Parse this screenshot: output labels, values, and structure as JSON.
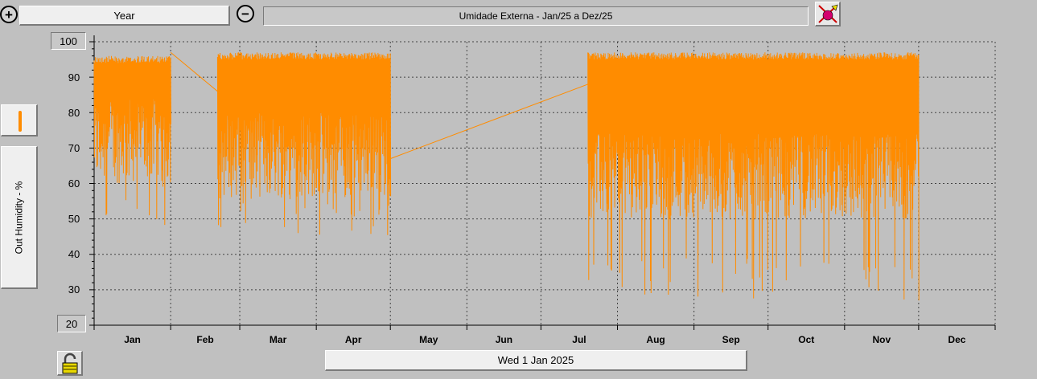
{
  "toolbar": {
    "zoom_in_icon": "zoom-in-icon",
    "zoom_out_icon": "zoom-out-icon",
    "period_label": "Year",
    "chart_title": "Umidade Externa - Jan/25 a Dez/25",
    "settings_icon": "paint-brush-icon"
  },
  "sidebar": {
    "series_label": "Out Humidity - %",
    "series_swatch_color": "#ff8c00"
  },
  "footer": {
    "lock_icon": "padlock-icon",
    "date_label": "Wed 1 Jan 2025"
  },
  "colors": {
    "background": "#c0c0c0",
    "series": "#ff8c00",
    "grid": "#444444"
  },
  "chart_data": {
    "type": "line",
    "ylim": [
      20,
      100
    ],
    "yticks": [
      20,
      30,
      40,
      50,
      60,
      70,
      80,
      90,
      100
    ],
    "xlim_days": [
      0,
      365
    ],
    "months": [
      "Jan",
      "Feb",
      "Mar",
      "Apr",
      "May",
      "Jun",
      "Jul",
      "Aug",
      "Sep",
      "Oct",
      "Nov",
      "Dec"
    ],
    "grid": true,
    "series": [
      {
        "color": "#ff8c00",
        "segments": [
          {
            "start_day": 0,
            "end_day": 31,
            "high": 96,
            "typical_low": 72,
            "min": 48
          },
          {
            "start_day": 50,
            "end_day": 120,
            "high": 97,
            "typical_low": 68,
            "min": 45
          },
          {
            "start_day": 200,
            "end_day": 334,
            "high": 97,
            "typical_low": 62,
            "min": 27
          }
        ],
        "connectors": [
          {
            "from_day": 31,
            "from_value": 97,
            "to_day": 50,
            "to_value": 86
          },
          {
            "from_day": 120,
            "from_value": 67,
            "to_day": 200,
            "to_value": 88
          }
        ]
      }
    ]
  }
}
